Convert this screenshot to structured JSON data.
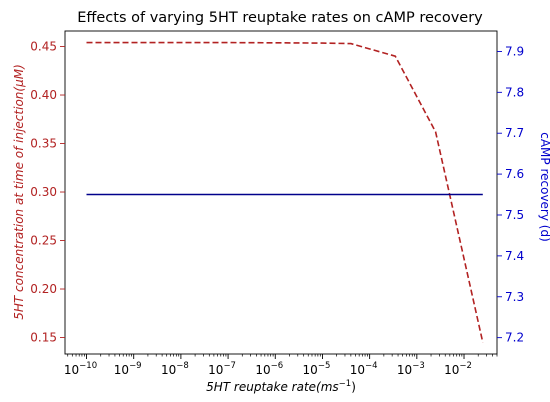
{
  "chart_data": {
    "type": "line",
    "title": "Effects of varying 5HT reuptake rates on cAMP recovery",
    "xlabel_main": "5HT reuptake rate",
    "xlabel_unit": "(ms",
    "xlabel_sup": "−1",
    "xlabel_close": ")",
    "ylabel_left": "5HT concentration at time of injection(μM)",
    "ylabel_right": "cAMP recovery (d)",
    "x_scale": "log",
    "xlim": [
      3.5e-11,
      0.05
    ],
    "ylim_left": [
      0.133,
      0.466
    ],
    "ylim_right": [
      7.16,
      7.95
    ],
    "x_tick_labels": [
      "10",
      "10",
      "10",
      "10",
      "10",
      "10",
      "10",
      "10",
      "10"
    ],
    "x_tick_exponents": [
      "−10",
      "−9",
      "−8",
      "−7",
      "−6",
      "−5",
      "−4",
      "−3",
      "−2"
    ],
    "x_tick_values": [
      1e-10,
      1e-09,
      1e-08,
      1e-07,
      1e-06,
      1e-05,
      0.0001,
      0.001,
      0.01
    ],
    "y_left_ticks": [
      "0.15",
      "0.20",
      "0.25",
      "0.30",
      "0.35",
      "0.40",
      "0.45"
    ],
    "y_left_tick_values": [
      0.15,
      0.2,
      0.25,
      0.3,
      0.35,
      0.4,
      0.45
    ],
    "y_right_ticks": [
      "7.2",
      "7.3",
      "7.4",
      "7.5",
      "7.6",
      "7.7",
      "7.8",
      "7.9"
    ],
    "y_right_tick_values": [
      7.2,
      7.3,
      7.4,
      7.5,
      7.6,
      7.7,
      7.8,
      7.9
    ],
    "grid": false,
    "series": [
      {
        "axis": "left",
        "style": "dashed",
        "color": "#b22222",
        "x": [
          1e-10,
          1e-09,
          1e-08,
          1e-07,
          1e-06,
          1e-05,
          4e-05,
          0.00035,
          0.0025,
          0.025
        ],
        "y": [
          0.454,
          0.454,
          0.454,
          0.454,
          0.4538,
          0.4535,
          0.453,
          0.44,
          0.362,
          0.145
        ]
      },
      {
        "axis": "right",
        "style": "solid",
        "color": "#00008b",
        "x": [
          1e-10,
          0.025
        ],
        "y": [
          7.55,
          7.55
        ]
      }
    ]
  }
}
